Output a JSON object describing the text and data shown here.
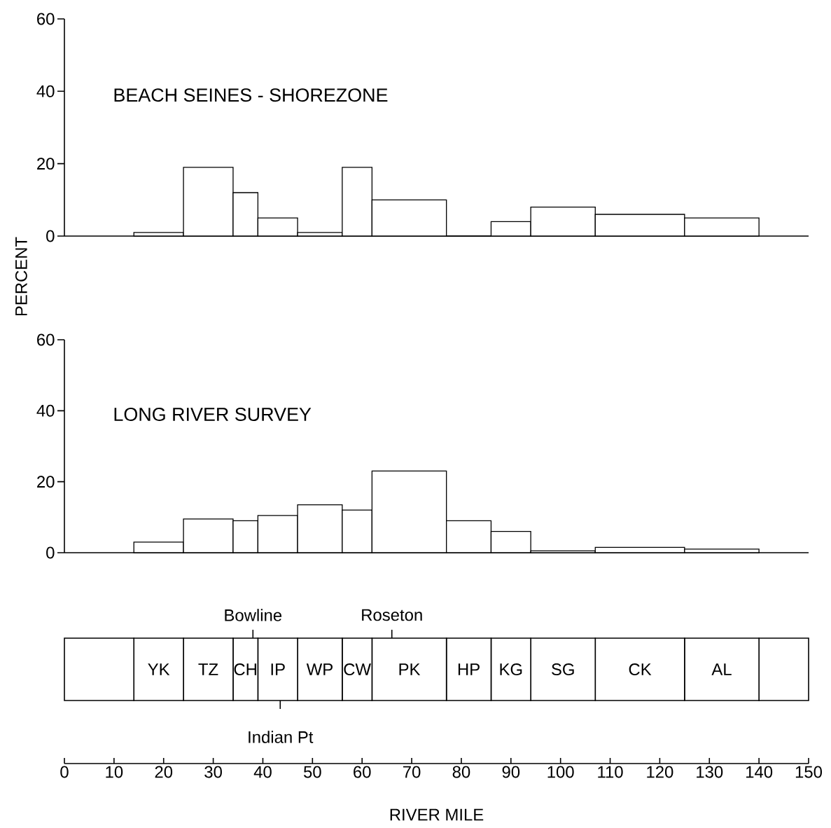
{
  "chart_data": [
    {
      "type": "histogram",
      "title": "BEACH SEINES - SHOREZONE",
      "ylabel": "PERCENT",
      "bins": [
        14,
        24,
        34,
        39,
        47,
        56,
        62,
        77,
        86,
        94,
        107,
        125,
        140
      ],
      "values": [
        1,
        19,
        12,
        5,
        1,
        19,
        10,
        0,
        4,
        8,
        6,
        5
      ],
      "color": "#ffffff",
      "xlim": [
        0,
        150
      ],
      "ylim": [
        0,
        60
      ],
      "yticks": [
        0,
        20,
        40,
        60
      ],
      "tick_labels": "y"
    },
    {
      "type": "histogram",
      "title": "LONG RIVER SURVEY",
      "bins": [
        14,
        24,
        34,
        39,
        47,
        56,
        62,
        77,
        86,
        94,
        107,
        125,
        140
      ],
      "values": [
        3,
        9.5,
        9,
        10.5,
        13.5,
        12,
        23,
        9,
        6,
        0.5,
        1.5,
        1
      ],
      "color": "#ffffff",
      "xlim": [
        0,
        150
      ],
      "ylim": [
        0,
        60
      ],
      "yticks": [
        0,
        20,
        40,
        60
      ],
      "tick_labels": "y"
    },
    {
      "type": "bar",
      "orientation": "horizontal",
      "stacked": true,
      "xlabel": "RIVER MILE",
      "categories": [
        null
      ],
      "xlim": [
        0,
        150
      ],
      "xticks": [
        0,
        10,
        20,
        30,
        40,
        50,
        60,
        70,
        80,
        90,
        100,
        110,
        120,
        130,
        140,
        150
      ],
      "series": [
        {
          "color": "#ffffff",
          "values": [
            14
          ]
        },
        {
          "name": "YK",
          "color": "#ffffff",
          "values": [
            10
          ]
        },
        {
          "name": "TZ",
          "color": "#ffffff",
          "values": [
            10
          ]
        },
        {
          "name": "CH",
          "color": "#ffffff",
          "values": [
            5
          ]
        },
        {
          "name": "IP",
          "color": "#ffffff",
          "values": [
            8
          ]
        },
        {
          "name": "WP",
          "color": "#ffffff",
          "values": [
            9
          ]
        },
        {
          "name": "CW",
          "color": "#ffffff",
          "values": [
            6
          ]
        },
        {
          "name": "PK",
          "color": "#ffffff",
          "values": [
            15
          ]
        },
        {
          "name": "HP",
          "color": "#ffffff",
          "values": [
            9
          ]
        },
        {
          "name": "KG",
          "color": "#ffffff",
          "values": [
            8
          ]
        },
        {
          "name": "SG",
          "color": "#ffffff",
          "values": [
            13
          ]
        },
        {
          "name": "CK",
          "color": "#ffffff",
          "values": [
            18
          ]
        },
        {
          "name": "AL",
          "color": "#ffffff",
          "values": [
            15
          ]
        },
        {
          "color": "#ffffff",
          "values": [
            10
          ]
        }
      ],
      "ref_lines": [
        {
          "axis": "x",
          "value": 38,
          "label": "Bowline"
        },
        {
          "axis": "x",
          "value": 43.5,
          "label": "Indian Pt"
        },
        {
          "axis": "x",
          "value": 66,
          "label": "Roseton"
        }
      ]
    }
  ]
}
